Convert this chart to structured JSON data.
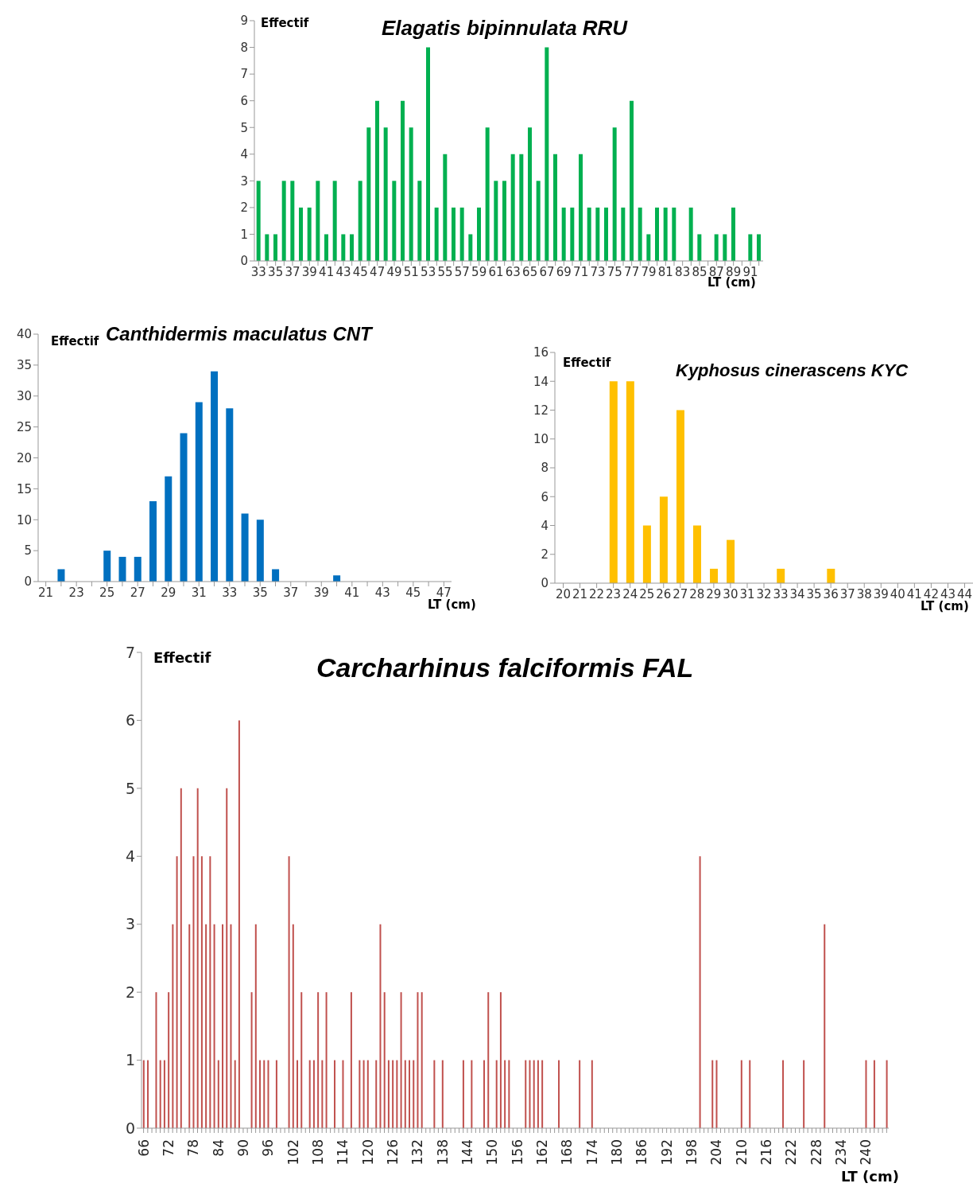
{
  "chart_data": [
    {
      "type": "bar",
      "title": "Elagatis bipinnulata RRU",
      "ylabel": "Effectif",
      "xlabel": "LT (cm)",
      "color": "#00b050",
      "categories": [
        "33",
        null,
        "35",
        null,
        "37",
        null,
        "39",
        null,
        "41",
        null,
        "43",
        null,
        "45",
        null,
        "47",
        null,
        "49",
        null,
        "51",
        null,
        "53",
        null,
        "55",
        null,
        "57",
        null,
        "59",
        null,
        "61",
        null,
        "63",
        null,
        "65",
        null,
        "67",
        null,
        "69",
        null,
        "71",
        null,
        "73",
        null,
        "75",
        null,
        "77",
        null,
        "79",
        null,
        "81",
        null,
        "83",
        null,
        "85",
        null,
        "87",
        null,
        "89",
        null,
        "91",
        null
      ],
      "values": [
        3,
        1,
        1,
        3,
        3,
        2,
        2,
        3,
        1,
        3,
        1,
        1,
        3,
        5,
        6,
        5,
        3,
        6,
        5,
        3,
        8,
        2,
        4,
        2,
        2,
        1,
        2,
        5,
        3,
        3,
        4,
        4,
        5,
        3,
        8,
        4,
        2,
        2,
        4,
        2,
        2,
        2,
        5,
        2,
        6,
        2,
        1,
        2,
        2,
        2,
        0,
        2,
        1,
        0,
        1,
        1,
        2,
        0,
        1,
        1
      ],
      "ylim": [
        0,
        9
      ],
      "yticks": [
        0,
        1,
        2,
        3,
        4,
        5,
        6,
        7,
        8,
        9
      ],
      "grid": false,
      "legend": false
    },
    {
      "type": "bar",
      "title": "Canthidermis maculatus CNT",
      "ylabel": "Effectif",
      "xlabel": "LT (cm)",
      "color": "#0070c0",
      "categories": [
        "21",
        null,
        "23",
        null,
        "25",
        null,
        "27",
        null,
        "29",
        null,
        "31",
        null,
        "33",
        null,
        "35",
        null,
        "37",
        null,
        "39",
        null,
        "41",
        null,
        "43",
        null,
        "45",
        null,
        "47"
      ],
      "values": [
        0,
        2,
        0,
        0,
        5,
        4,
        4,
        13,
        17,
        24,
        29,
        34,
        28,
        11,
        10,
        2,
        0,
        0,
        0,
        1,
        0,
        0,
        0,
        0,
        0,
        0,
        0
      ],
      "ylim": [
        0,
        40
      ],
      "yticks": [
        0,
        5,
        10,
        15,
        20,
        25,
        30,
        35,
        40
      ],
      "grid": false,
      "legend": false
    },
    {
      "type": "bar",
      "title": "Kyphosus cinerascens KYC",
      "ylabel": "Effectif",
      "xlabel": "LT (cm)",
      "color": "#ffc000",
      "categories": [
        "20",
        "21",
        "22",
        "23",
        "24",
        "25",
        "26",
        "27",
        "28",
        "29",
        "30",
        "31",
        "32",
        "33",
        "34",
        "35",
        "36",
        "37",
        "38",
        "39",
        "40",
        "41",
        "42",
        "43",
        "44"
      ],
      "values": [
        0,
        0,
        0,
        14,
        14,
        4,
        6,
        12,
        4,
        1,
        3,
        0,
        0,
        1,
        0,
        0,
        1,
        0,
        0,
        0,
        0,
        0,
        0,
        0,
        0
      ],
      "ylim": [
        0,
        16
      ],
      "yticks": [
        0,
        2,
        4,
        6,
        8,
        10,
        12,
        14,
        16
      ],
      "grid": false,
      "legend": false
    },
    {
      "type": "bar",
      "title": "Carcharhinus falciformis FAL",
      "ylabel": "Effectif",
      "xlabel": "LT (cm)",
      "color": "#c0504d",
      "categories": [
        "66",
        null,
        null,
        null,
        null,
        null,
        "72",
        null,
        null,
        null,
        null,
        null,
        "78",
        null,
        null,
        null,
        null,
        null,
        "84",
        null,
        null,
        null,
        null,
        null,
        "90",
        null,
        null,
        null,
        null,
        null,
        "96",
        null,
        null,
        null,
        null,
        null,
        "102",
        null,
        null,
        null,
        null,
        null,
        "108",
        null,
        null,
        null,
        null,
        null,
        "114",
        null,
        null,
        null,
        null,
        null,
        "120",
        null,
        null,
        null,
        null,
        null,
        "126",
        null,
        null,
        null,
        null,
        null,
        "132",
        null,
        null,
        null,
        null,
        null,
        "138",
        null,
        null,
        null,
        null,
        null,
        "144",
        null,
        null,
        null,
        null,
        null,
        "150",
        null,
        null,
        null,
        null,
        null,
        "156",
        null,
        null,
        null,
        null,
        null,
        "162",
        null,
        null,
        null,
        null,
        null,
        "168",
        null,
        null,
        null,
        null,
        null,
        "174",
        null,
        null,
        null,
        null,
        null,
        "180",
        null,
        null,
        null,
        null,
        null,
        "186",
        null,
        null,
        null,
        null,
        null,
        "192",
        null,
        null,
        null,
        null,
        null,
        "198",
        null,
        null,
        null,
        null,
        null,
        "204",
        null,
        null,
        null,
        null,
        null,
        "210",
        null,
        null,
        null,
        null,
        null,
        "216",
        null,
        null,
        null,
        null,
        null,
        "222",
        null,
        null,
        null,
        null,
        null,
        "228",
        null,
        null,
        null,
        null,
        null,
        "234",
        null,
        null,
        null,
        null,
        null,
        "240",
        null,
        null,
        null,
        null,
        null
      ],
      "values": [
        1,
        1,
        0,
        2,
        1,
        1,
        2,
        3,
        4,
        5,
        0,
        3,
        4,
        5,
        4,
        3,
        4,
        3,
        1,
        3,
        5,
        3,
        1,
        6,
        0,
        0,
        2,
        3,
        1,
        1,
        1,
        0,
        1,
        0,
        0,
        4,
        3,
        1,
        2,
        0,
        1,
        1,
        2,
        1,
        2,
        0,
        1,
        0,
        1,
        0,
        2,
        0,
        1,
        1,
        1,
        0,
        1,
        3,
        2,
        1,
        1,
        1,
        2,
        1,
        1,
        1,
        2,
        2,
        0,
        0,
        1,
        0,
        1,
        0,
        0,
        0,
        0,
        1,
        0,
        1,
        0,
        0,
        1,
        2,
        0,
        1,
        2,
        1,
        1,
        0,
        0,
        0,
        1,
        1,
        1,
        1,
        1,
        0,
        0,
        0,
        1,
        0,
        0,
        0,
        0,
        1,
        0,
        0,
        1,
        0,
        0,
        0,
        0,
        0,
        0,
        0,
        0,
        0,
        0,
        0,
        0,
        0,
        0,
        0,
        0,
        0,
        0,
        0,
        0,
        0,
        0,
        0,
        0,
        0,
        4,
        0,
        0,
        1,
        1,
        0,
        0,
        0,
        0,
        0,
        1,
        0,
        1,
        0,
        0,
        0,
        0,
        0,
        0,
        0,
        1,
        0,
        0,
        0,
        0,
        1,
        0,
        0,
        0,
        0,
        3,
        0,
        0,
        0,
        0,
        0,
        0,
        0,
        0,
        0,
        1,
        0,
        1,
        0,
        0,
        1
      ],
      "ylim": [
        0,
        7
      ],
      "yticks": [
        0,
        1,
        2,
        3,
        4,
        5,
        6,
        7
      ],
      "grid": false,
      "legend": false
    }
  ]
}
